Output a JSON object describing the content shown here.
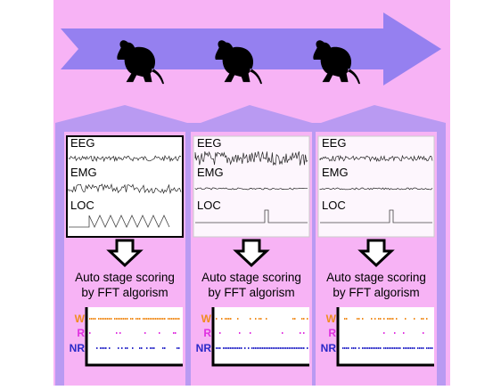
{
  "panels": [
    {
      "signals": [
        "EEG",
        "EMG",
        "LOC"
      ],
      "caption": [
        "Auto stage scoring",
        "by FFT algorism"
      ],
      "stages": [
        "W",
        "R",
        "NR"
      ]
    },
    {
      "signals": [
        "EEG",
        "EMG",
        "LOC"
      ],
      "caption": [
        "Auto stage scoring",
        "by FFT algorism"
      ],
      "stages": [
        "W",
        "R",
        "NR"
      ]
    },
    {
      "signals": [
        "EEG",
        "EMG",
        "LOC"
      ],
      "caption": [
        "Auto stage scoring",
        "by FFT algorism"
      ],
      "stages": [
        "W",
        "R",
        "NR"
      ]
    }
  ]
}
